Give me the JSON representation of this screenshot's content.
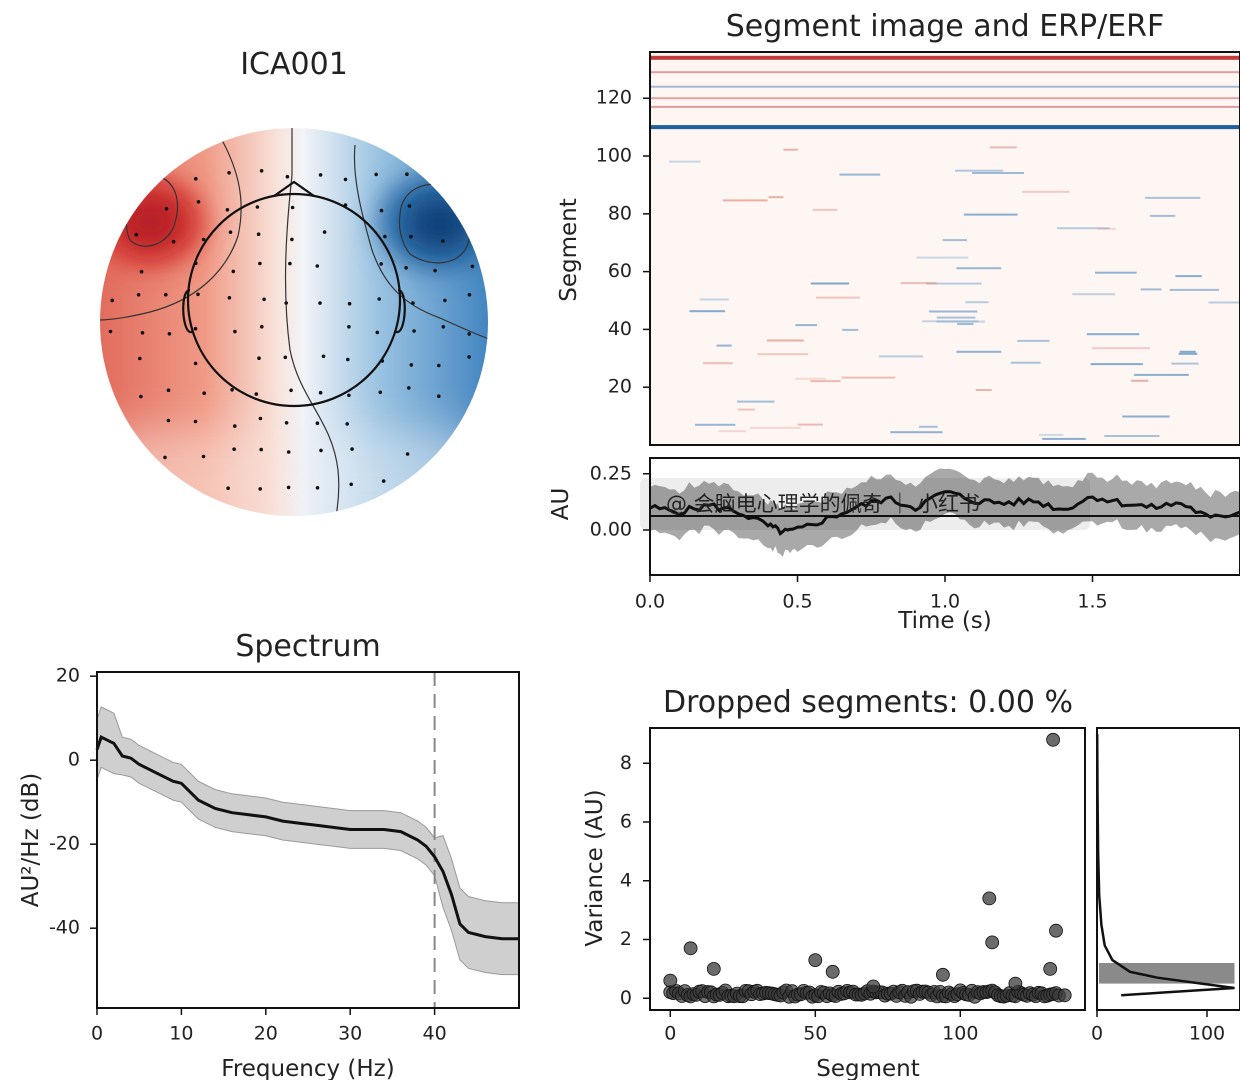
{
  "chart_data": [
    {
      "type": "topomap",
      "title": "ICA001",
      "colors": {
        "positive": "#c9262c",
        "negative": "#0b4f8a",
        "neutral": "#f7f7f7"
      }
    },
    {
      "type": "heatmap",
      "title": "Segment image and ERP/ERF",
      "ylabel": "Segment",
      "yticks": [
        "20",
        "40",
        "60",
        "80",
        "100",
        "120"
      ],
      "ylim": [
        0,
        136
      ],
      "strong_rows": [
        {
          "segment": 134,
          "sign": "positive",
          "strength": 1.0
        },
        {
          "segment": 129,
          "sign": "positive",
          "strength": 0.3
        },
        {
          "segment": 124,
          "sign": "negative",
          "strength": 0.2
        },
        {
          "segment": 120,
          "sign": "positive",
          "strength": 0.25
        },
        {
          "segment": 117,
          "sign": "positive",
          "strength": 0.3
        },
        {
          "segment": 110,
          "sign": "negative",
          "strength": 1.0
        }
      ]
    },
    {
      "type": "line",
      "ylabel": "AU",
      "xlabel": "Time (s)",
      "xticks": [
        "0.0",
        "0.5",
        "1.0",
        "1.5"
      ],
      "yticks": [
        "0.00",
        "0.25"
      ],
      "xlim": [
        0,
        2.0
      ],
      "ylim": [
        -0.2,
        0.32
      ],
      "x": [
        0,
        0.1,
        0.2,
        0.3,
        0.4,
        0.45,
        0.5,
        0.6,
        0.7,
        0.8,
        0.9,
        1.0,
        1.1,
        1.2,
        1.3,
        1.4,
        1.5,
        1.6,
        1.7,
        1.8,
        1.9,
        2.0
      ],
      "mean": [
        0.1,
        0.08,
        0.11,
        0.08,
        0.02,
        -0.01,
        0.0,
        0.05,
        0.1,
        0.14,
        0.1,
        0.17,
        0.13,
        0.12,
        0.13,
        0.09,
        0.15,
        0.12,
        0.1,
        0.12,
        0.05,
        0.08
      ],
      "spread": 0.1,
      "watermark": "@ 会脑电心理学的佩奇 ｜ 小红书"
    },
    {
      "type": "line",
      "title": "Spectrum",
      "xlabel": "Frequency (Hz)",
      "ylabel": "AU²/Hz (dB)",
      "xticks": [
        "0",
        "10",
        "20",
        "30",
        "40"
      ],
      "yticks": [
        "20",
        "0",
        "-20",
        "-40"
      ],
      "xlim": [
        0,
        50
      ],
      "ylim": [
        -59,
        21
      ],
      "cutoff": 40,
      "x": [
        0,
        0.5,
        1,
        2,
        3,
        4,
        5,
        7,
        9,
        10,
        11,
        12,
        14,
        16,
        18,
        20,
        22,
        24,
        26,
        28,
        30,
        32,
        34,
        36,
        38,
        39,
        40,
        41,
        42,
        43,
        44,
        45,
        46,
        48,
        50
      ],
      "mean": [
        2.5,
        5.5,
        5,
        4,
        1,
        0.5,
        -1,
        -3,
        -5,
        -5.5,
        -7.5,
        -9.5,
        -11.5,
        -12.5,
        -13,
        -13.5,
        -14.5,
        -15,
        -15.5,
        -16,
        -16.5,
        -16.5,
        -16.5,
        -17,
        -19,
        -20.5,
        -23,
        -26.5,
        -32,
        -39,
        -41,
        -41.5,
        -42,
        -42.5,
        -42.5
      ],
      "band": 4.5
    },
    {
      "type": "scatter",
      "title": "Dropped segments: 0.00 %",
      "xlabel": "Segment",
      "ylabel": "Variance (AU)",
      "xticks": [
        "0",
        "50",
        "100"
      ],
      "yticks": [
        "0",
        "2",
        "4",
        "6",
        "8"
      ],
      "xlim": [
        -7,
        143
      ],
      "ylim": [
        -0.4,
        9.2
      ],
      "n_segments": 135,
      "outliers": [
        [
          0,
          0.6
        ],
        [
          7,
          1.7
        ],
        [
          15,
          1.0
        ],
        [
          50,
          1.3
        ],
        [
          56,
          0.9
        ],
        [
          70,
          0.4
        ],
        [
          94,
          0.8
        ],
        [
          110,
          3.4
        ],
        [
          111,
          1.9
        ],
        [
          119,
          0.5
        ],
        [
          132,
          8.8
        ],
        [
          133,
          2.3
        ],
        [
          131,
          1.0
        ],
        [
          136,
          0.1
        ]
      ]
    },
    {
      "type": "histogram",
      "xticks": [
        "0",
        "100"
      ],
      "xlim": [
        0,
        130
      ],
      "ylim": [
        -0.4,
        9.2
      ],
      "bar": {
        "lo": 0.5,
        "hi": 1.2,
        "count": 125
      },
      "density": [
        [
          0.1,
          22
        ],
        [
          0.2,
          62
        ],
        [
          0.35,
          125
        ],
        [
          0.5,
          95
        ],
        [
          0.7,
          55
        ],
        [
          0.9,
          30
        ],
        [
          1.3,
          14
        ],
        [
          1.8,
          7
        ],
        [
          2.5,
          4
        ],
        [
          3.5,
          2
        ],
        [
          5,
          1
        ],
        [
          7,
          0.5
        ],
        [
          9,
          0.2
        ]
      ]
    }
  ]
}
